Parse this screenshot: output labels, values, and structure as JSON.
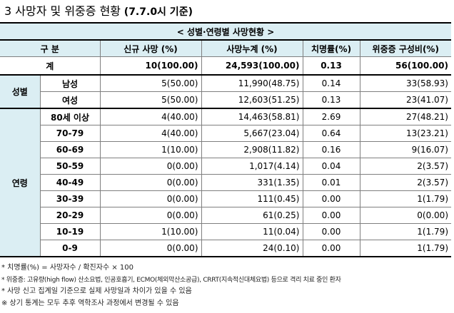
{
  "title": {
    "main": "3  사망자 및 위중증 현황",
    "sub": "(7.7.0시 기준)"
  },
  "table_caption": "< 성별·연령별 사망현황 >",
  "headers": {
    "group": "구 분",
    "new_deaths": "신규 사망        (%)",
    "cum_deaths": "사망누계        (%)",
    "fatality": "치명률(%)",
    "critical": "위중증     구성비(%)"
  },
  "total": {
    "label": "계",
    "new_deaths": "10(100.00)",
    "cum_deaths": "24,593(100.00)",
    "fatality": "0.13",
    "critical": "56(100.00)"
  },
  "sex": {
    "group_label": "성별",
    "rows": [
      {
        "label": "남성",
        "new_deaths": "5(50.00)",
        "cum_deaths": "11,990(48.75)",
        "fatality": "0.14",
        "critical": "33(58.93)"
      },
      {
        "label": "여성",
        "new_deaths": "5(50.00)",
        "cum_deaths": "12,603(51.25)",
        "fatality": "0.13",
        "critical": "23(41.07)"
      }
    ]
  },
  "age": {
    "group_label": "연령",
    "rows": [
      {
        "label": "80세 이상",
        "new_deaths": "4(40.00)",
        "cum_deaths": "14,463(58.81)",
        "fatality": "2.69",
        "critical": "27(48.21)"
      },
      {
        "label": "70-79",
        "new_deaths": "4(40.00)",
        "cum_deaths": "5,667(23.04)",
        "fatality": "0.64",
        "critical": "13(23.21)"
      },
      {
        "label": "60-69",
        "new_deaths": "1(10.00)",
        "cum_deaths": "2,908(11.82)",
        "fatality": "0.16",
        "critical": "9(16.07)"
      },
      {
        "label": "50-59",
        "new_deaths": "0(0.00)",
        "cum_deaths": "1,017(4.14)",
        "fatality": "0.04",
        "critical": "2(3.57)"
      },
      {
        "label": "40-49",
        "new_deaths": "0(0.00)",
        "cum_deaths": "331(1.35)",
        "fatality": "0.01",
        "critical": "2(3.57)"
      },
      {
        "label": "30-39",
        "new_deaths": "0(0.00)",
        "cum_deaths": "111(0.45)",
        "fatality": "0.00",
        "critical": "1(1.79)"
      },
      {
        "label": "20-29",
        "new_deaths": "0(0.00)",
        "cum_deaths": "61(0.25)",
        "fatality": "0.00",
        "critical": "0(0.00)"
      },
      {
        "label": "10-19",
        "new_deaths": "1(10.00)",
        "cum_deaths": "11(0.04)",
        "fatality": "0.00",
        "critical": "1(1.79)"
      },
      {
        "label": "0-9",
        "new_deaths": "0(0.00)",
        "cum_deaths": "24(0.10)",
        "fatality": "0.00",
        "critical": "1(1.79)"
      }
    ]
  },
  "notes": [
    "* 치명률(%) = 사망자수 / 확진자수 × 100",
    "* 위중증: 고유량(high flow) 산소요법, 인공호흡기, ECMO(체외막산소공급), CRRT(지속적신대체요법) 등으로 격리 치료 중인 환자",
    "* 사망 신고 집계일 기준으로 실제 사망일과 차이가 있을 수 있음",
    "※ 상기 통계는 모두 추후 역학조사 과정에서 변경될 수 있음"
  ]
}
